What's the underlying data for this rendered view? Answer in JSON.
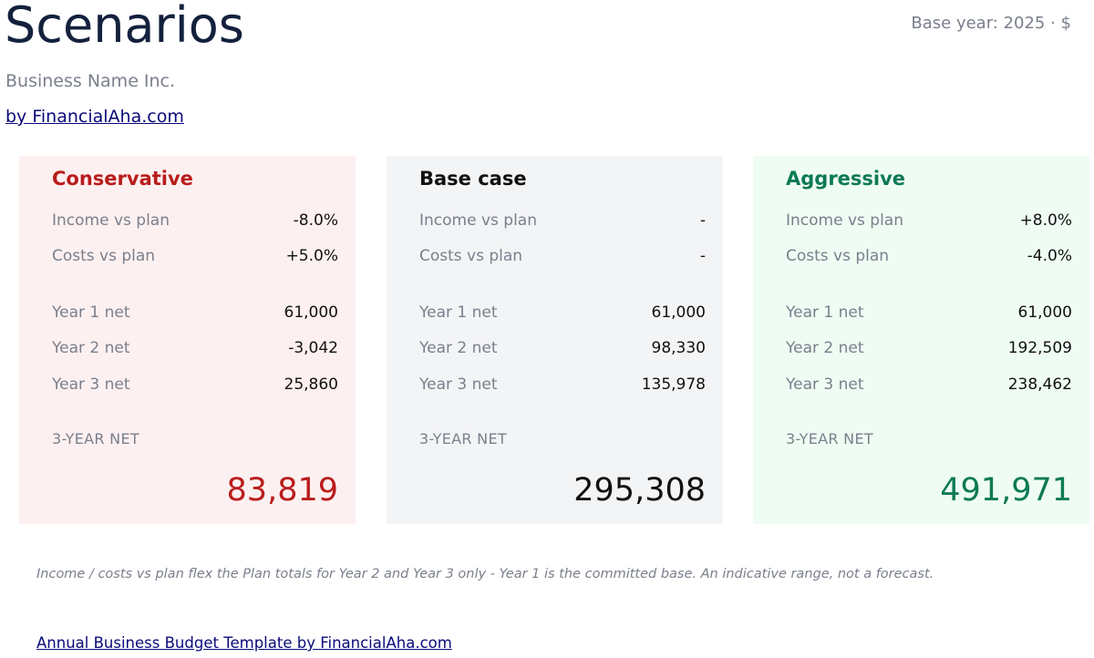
{
  "header": {
    "title": "Scenarios",
    "base_year": "Base year: 2025 · $",
    "business_name": "Business Name Inc.",
    "by_link": "by FinancialAha.com"
  },
  "colors": {
    "conservative_accent": "#b91c1c",
    "conservative_bg": "#fdf0f0",
    "base_accent": "#111111",
    "base_bg": "#f3f4f6",
    "aggressive_accent": "#0b7a55",
    "aggressive_bg": "#effcf3",
    "link": "#0a0a7a",
    "muted_text": "#7a7f8c"
  },
  "scenarios": [
    {
      "title": "Conservative",
      "income_label": "Income vs plan",
      "income_value": "-8.0%",
      "costs_label": "Costs vs plan",
      "costs_value": "+5.0%",
      "year1_label": "Year 1 net",
      "year1_value": "61,000",
      "year2_label": "Year 2 net",
      "year2_value": "-3,042",
      "year3_label": "Year 3 net",
      "year3_value": "25,860",
      "net_label": "3-YEAR NET",
      "net_value": "83,819"
    },
    {
      "title": "Base case",
      "income_label": "Income vs plan",
      "income_value": "-",
      "costs_label": "Costs vs plan",
      "costs_value": "-",
      "year1_label": "Year 1 net",
      "year1_value": "61,000",
      "year2_label": "Year 2 net",
      "year2_value": "98,330",
      "year3_label": "Year 3 net",
      "year3_value": "135,978",
      "net_label": "3-YEAR NET",
      "net_value": "295,308"
    },
    {
      "title": "Aggressive",
      "income_label": "Income vs plan",
      "income_value": "+8.0%",
      "costs_label": "Costs vs plan",
      "costs_value": "-4.0%",
      "year1_label": "Year 1 net",
      "year1_value": "61,000",
      "year2_label": "Year 2 net",
      "year2_value": "192,509",
      "year3_label": "Year 3 net",
      "year3_value": "238,462",
      "net_label": "3-YEAR NET",
      "net_value": "491,971"
    }
  ],
  "footnote": "Income / costs vs plan flex the Plan totals for Year 2 and Year 3 only - Year 1 is the committed base. An indicative range, not a forecast.",
  "footer_link": "Annual Business Budget Template by FinancialAha.com"
}
